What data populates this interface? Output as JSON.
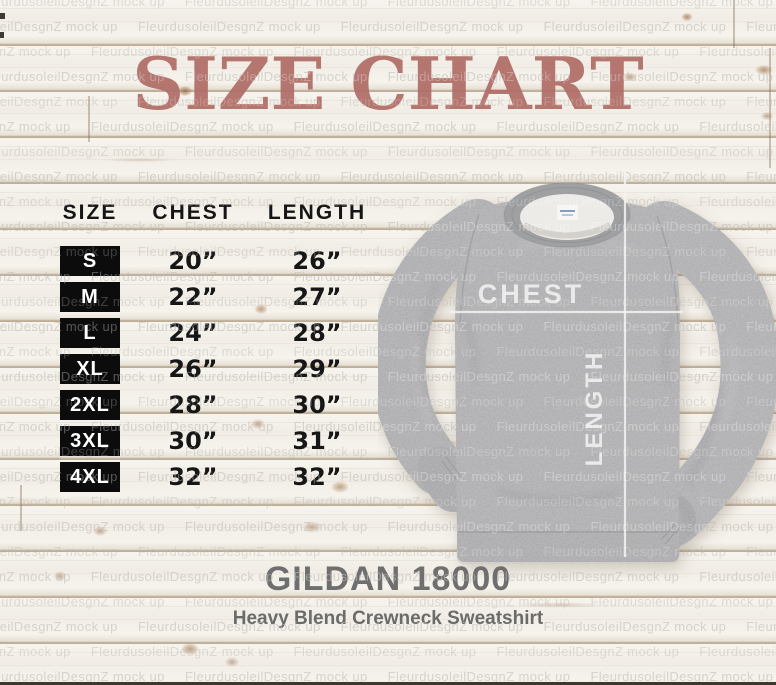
{
  "title": "SIZE CHART",
  "watermark": {
    "text": "FleurdusoleilDesgnZ mock up",
    "rows": 28,
    "repeats": 5
  },
  "size_table": {
    "headers": [
      "SIZE",
      "CHEST",
      "LENGTH"
    ],
    "rows": [
      {
        "size": "S",
        "chest": "20”",
        "length": "26”"
      },
      {
        "size": "M",
        "chest": "22”",
        "length": "27”"
      },
      {
        "size": "L",
        "chest": "24”",
        "length": "28”"
      },
      {
        "size": "XL",
        "chest": "26”",
        "length": "29”"
      },
      {
        "size": "2XL",
        "chest": "28”",
        "length": "30”"
      },
      {
        "size": "3XL",
        "chest": "30”",
        "length": "31”"
      },
      {
        "size": "4XL",
        "chest": "32”",
        "length": "32”"
      }
    ]
  },
  "garment": {
    "chest_label": "CHEST",
    "length_label": "LENGTH"
  },
  "footer": {
    "product": "GILDAN 18000",
    "subtitle": "Heavy Blend Crewneck Sweatshirt"
  },
  "colors": {
    "title": "#b0726c",
    "badge_bg": "#0c0c0c",
    "badge_text": "#ffffff",
    "table_text": "#161616",
    "footer_text": "#6f6f6f",
    "sweatshirt_gray": "#a7a7a9",
    "measure_line": "#f5f4f1"
  },
  "chart_data": {
    "type": "table",
    "title": "SIZE CHART",
    "columns": [
      "SIZE",
      "CHEST",
      "LENGTH"
    ],
    "rows": [
      [
        "S",
        "20\"",
        "26\""
      ],
      [
        "M",
        "22\"",
        "27\""
      ],
      [
        "L",
        "24\"",
        "28\""
      ],
      [
        "XL",
        "26\"",
        "29\""
      ],
      [
        "2XL",
        "28\"",
        "30\""
      ],
      [
        "3XL",
        "30\"",
        "31\""
      ],
      [
        "4XL",
        "32\"",
        "32\""
      ]
    ],
    "units": "inches",
    "product": "GILDAN 18000",
    "product_subtitle": "Heavy Blend Crewneck Sweatshirt"
  }
}
